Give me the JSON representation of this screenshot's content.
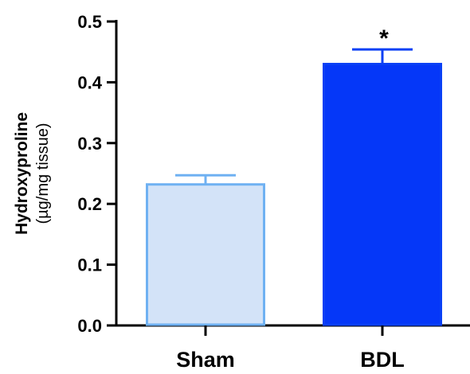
{
  "chart_data": {
    "type": "bar",
    "categories": [
      "Sham",
      "BDL"
    ],
    "values": [
      0.232,
      0.43
    ],
    "errors": [
      0.015,
      0.024
    ],
    "ylabel": "Hydroxyproline",
    "ylabel_unit": "(µg/mg tissue)",
    "ylim": [
      0,
      0.5
    ],
    "yticks": [
      "0.0",
      "0.1",
      "0.2",
      "0.3",
      "0.4",
      "0.5"
    ],
    "annotations": [
      "",
      "*"
    ],
    "colors": {
      "Sham": {
        "fill": "#d3e3f8",
        "stroke": "#6fb1f2"
      },
      "BDL": {
        "fill": "#0537f8",
        "stroke": "#0a40f5"
      }
    },
    "grid": false
  }
}
